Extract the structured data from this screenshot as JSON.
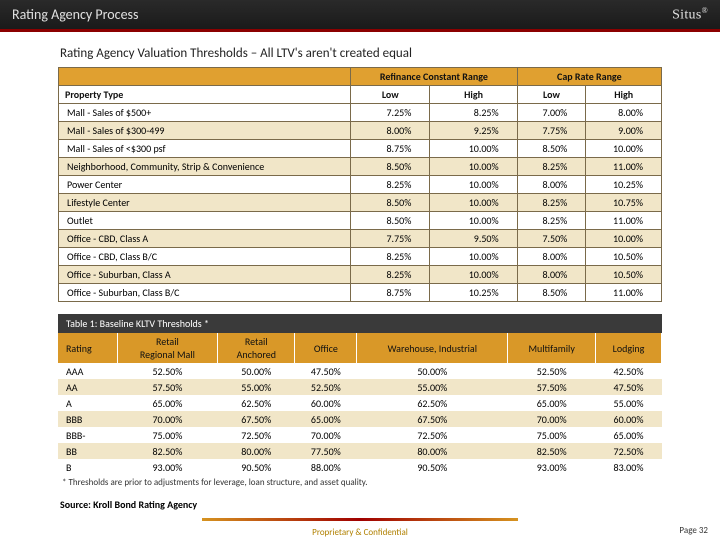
{
  "header": {
    "title": "Rating Agency Process",
    "logo": "Situs",
    "reg": "®"
  },
  "subtitle": "Rating Agency Valuation Thresholds – All LTV's aren't created equal",
  "table1": {
    "group_headers": [
      "Refinance Constant Range",
      "Cap Rate Range"
    ],
    "col_headers": [
      "Property Type",
      "Low",
      "High",
      "Low",
      "High"
    ],
    "rows": [
      {
        "label": "Mall - Sales of $500+",
        "v": [
          "7.25%",
          "8.25%",
          "7.00%",
          "8.00%"
        ]
      },
      {
        "label": "Mall - Sales of $300-499",
        "v": [
          "8.00%",
          "9.25%",
          "7.75%",
          "9.00%"
        ]
      },
      {
        "label": "Mall - Sales of <$300 psf",
        "v": [
          "8.75%",
          "10.00%",
          "8.50%",
          "10.00%"
        ]
      },
      {
        "label": "Neighborhood, Community, Strip & Convenience",
        "v": [
          "8.50%",
          "10.00%",
          "8.25%",
          "11.00%"
        ]
      },
      {
        "label": "Power Center",
        "v": [
          "8.25%",
          "10.00%",
          "8.00%",
          "10.25%"
        ]
      },
      {
        "label": "Lifestyle Center",
        "v": [
          "8.50%",
          "10.00%",
          "8.25%",
          "10.75%"
        ]
      },
      {
        "label": "Outlet",
        "v": [
          "8.50%",
          "10.00%",
          "8.25%",
          "11.00%"
        ]
      },
      {
        "label": "Office - CBD, Class A",
        "v": [
          "7.75%",
          "9.50%",
          "7.50%",
          "10.00%"
        ]
      },
      {
        "label": "Office - CBD, Class B/C",
        "v": [
          "8.25%",
          "10.00%",
          "8.00%",
          "10.50%"
        ]
      },
      {
        "label": "Office - Suburban, Class A",
        "v": [
          "8.25%",
          "10.00%",
          "8.00%",
          "10.50%"
        ]
      },
      {
        "label": "Office - Suburban, Class B/C",
        "v": [
          "8.75%",
          "10.25%",
          "8.50%",
          "11.00%"
        ]
      }
    ]
  },
  "table2": {
    "title": "Table 1: Baseline KLTV Thresholds *",
    "headers": [
      "Rating",
      "Retail - Regional Mall",
      "Retail - Anchored",
      "Office",
      "Warehouse, Industrial",
      "Multifamily",
      "Lodging"
    ],
    "rows": [
      {
        "r": "AAA",
        "v": [
          "52.50%",
          "50.00%",
          "47.50%",
          "50.00%",
          "52.50%",
          "42.50%"
        ]
      },
      {
        "r": "AA",
        "v": [
          "57.50%",
          "55.00%",
          "52.50%",
          "55.00%",
          "57.50%",
          "47.50%"
        ]
      },
      {
        "r": "A",
        "v": [
          "65.00%",
          "62.50%",
          "60.00%",
          "62.50%",
          "65.00%",
          "55.00%"
        ]
      },
      {
        "r": "BBB",
        "v": [
          "70.00%",
          "67.50%",
          "65.00%",
          "67.50%",
          "70.00%",
          "60.00%"
        ]
      },
      {
        "r": "BBB-",
        "v": [
          "75.00%",
          "72.50%",
          "70.00%",
          "72.50%",
          "75.00%",
          "65.00%"
        ]
      },
      {
        "r": "BB",
        "v": [
          "82.50%",
          "80.00%",
          "77.50%",
          "80.00%",
          "82.50%",
          "72.50%"
        ]
      },
      {
        "r": "B",
        "v": [
          "93.00%",
          "90.50%",
          "88.00%",
          "90.50%",
          "93.00%",
          "83.00%"
        ]
      }
    ],
    "footnote": "* Thresholds are prior to adjustments for leverage, loan structure, and asset quality."
  },
  "source": "Source: Kroll Bond Rating Agency",
  "footer": {
    "center": "Proprietary & Confidential",
    "page": "Page 32"
  }
}
